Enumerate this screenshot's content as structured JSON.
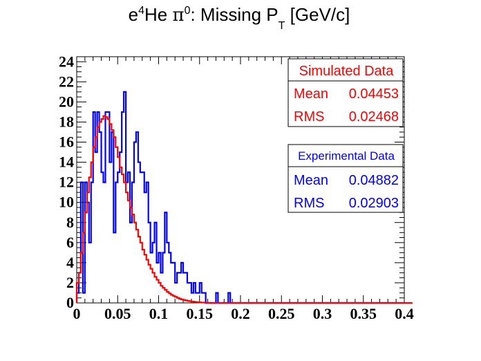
{
  "chart_data": {
    "type": "histogram",
    "title_parts": {
      "e": "e",
      "superscript_4": "4",
      "he": "He ",
      "pi": "π",
      "superscript_0": "0",
      "rest": ": Missing P",
      "subscript_t": "T",
      "unit": " [GeV/c]"
    },
    "xlim": [
      0,
      0.4
    ],
    "ylim": [
      0,
      24.5
    ],
    "x_ticks": [
      0,
      0.05,
      0.1,
      0.15,
      0.2,
      0.25,
      0.3,
      0.35,
      0.4
    ],
    "x_tick_labels": [
      "0",
      "0.05",
      "0.1",
      "0.15",
      "0.2",
      "0.25",
      "0.3",
      "0.35",
      "0.4"
    ],
    "y_ticks": [
      0,
      2,
      4,
      6,
      8,
      10,
      12,
      14,
      16,
      18,
      20,
      22,
      24
    ],
    "y_tick_labels": [
      "0",
      "2",
      "4",
      "6",
      "8",
      "10",
      "12",
      "14",
      "16",
      "18",
      "20",
      "22",
      "24"
    ],
    "bin_width": 0.0025,
    "series": [
      {
        "name": "Experimental Data",
        "color": "#0000ff",
        "values": [
          1,
          3,
          12,
          1,
          12,
          10,
          6,
          12,
          19,
          15,
          19,
          17,
          13,
          12,
          19,
          19,
          14,
          17,
          7,
          12,
          13,
          15,
          19,
          21,
          12,
          13,
          8,
          12,
          16,
          17,
          14,
          13,
          13,
          11,
          12,
          8,
          5,
          6,
          8,
          4,
          5,
          3,
          5,
          9,
          6,
          5,
          4,
          4,
          2,
          3,
          3,
          4,
          3,
          3,
          2,
          2,
          1,
          2,
          1,
          1,
          2,
          1,
          1,
          0,
          0,
          0,
          0,
          0,
          1,
          0,
          0,
          0,
          0,
          0,
          1,
          0,
          0,
          0,
          0,
          0,
          0,
          0,
          0,
          0,
          0,
          0,
          0,
          0,
          0,
          0,
          0,
          0,
          0,
          0,
          0,
          0,
          0,
          0,
          0,
          0,
          0,
          0,
          0,
          0,
          0,
          0,
          0,
          0,
          0,
          0,
          0,
          0,
          0,
          0,
          0,
          0,
          0,
          0,
          0,
          0,
          0,
          0,
          0,
          0,
          0,
          0,
          0,
          0,
          0,
          0,
          0,
          0,
          0,
          0,
          0,
          0,
          0,
          0,
          0,
          0,
          0,
          0,
          0,
          0,
          0,
          0,
          0,
          0,
          0,
          0,
          0,
          0,
          0,
          0,
          0,
          0,
          0,
          0,
          0,
          0
        ]
      },
      {
        "name": "Simulated Data",
        "color": "#ff0000",
        "values": [
          2,
          3,
          5,
          7,
          9,
          11,
          12.5,
          14,
          15.5,
          16.5,
          17.5,
          18,
          18.3,
          18.6,
          18.5,
          18.3,
          17.8,
          17.2,
          16.5,
          15.5,
          14.5,
          13.5,
          12.8,
          12,
          11,
          10.2,
          9.5,
          8.8,
          8,
          7.3,
          6.6,
          6,
          5.3,
          4.8,
          4.3,
          3.8,
          3.4,
          3,
          2.6,
          2.3,
          2,
          1.7,
          1.5,
          1.3,
          1.1,
          0.95,
          0.8,
          0.7,
          0.6,
          0.5,
          0.42,
          0.35,
          0.3,
          0.25,
          0.2,
          0.17,
          0.14,
          0.11,
          0.09,
          0.07,
          0.05,
          0.04,
          0.03,
          0.02,
          0.01,
          0,
          0,
          0,
          0,
          0,
          0,
          0,
          0,
          0,
          0,
          0,
          0,
          0,
          0,
          0,
          0,
          0,
          0,
          0,
          0,
          0,
          0,
          0,
          0,
          0,
          0,
          0,
          0,
          0,
          0,
          0,
          0,
          0,
          0,
          0,
          0,
          0,
          0,
          0,
          0,
          0,
          0,
          0,
          0,
          0,
          0,
          0,
          0,
          0,
          0,
          0,
          0,
          0,
          0,
          0,
          0,
          0,
          0,
          0,
          0,
          0,
          0,
          0,
          0,
          0,
          0,
          0,
          0,
          0,
          0,
          0,
          0,
          0,
          0,
          0,
          0,
          0,
          0,
          0,
          0,
          0,
          0,
          0,
          0,
          0,
          0,
          0,
          0,
          0,
          0,
          0,
          0,
          0,
          0,
          0,
          0,
          0,
          0,
          0
        ]
      }
    ],
    "stats_boxes": [
      {
        "title": "Simulated Data",
        "color": "#ff0000",
        "mean_label": "Mean",
        "mean": "0.04453",
        "rms_label": "RMS",
        "rms": "0.02468"
      },
      {
        "title": "Experimental Data",
        "color": "#0000ff",
        "mean_label": "Mean",
        "mean": "0.04882",
        "rms_label": "RMS",
        "rms": "0.02903"
      }
    ]
  }
}
